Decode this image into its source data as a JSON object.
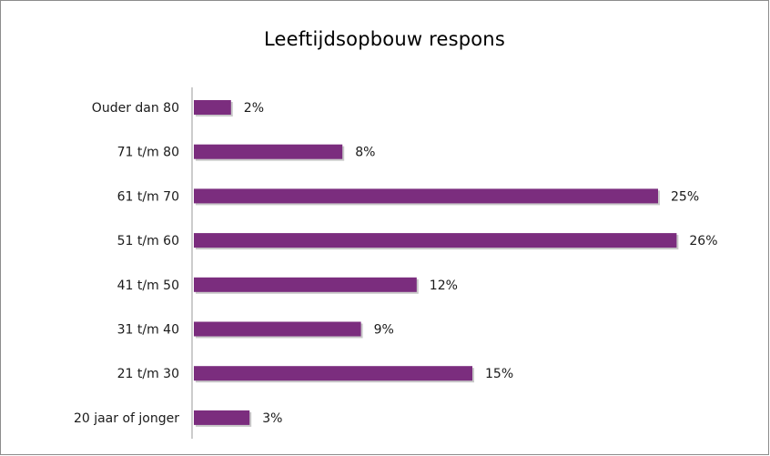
{
  "chart_data": {
    "type": "bar",
    "orientation": "horizontal",
    "title": "Leeftijdsopbouw respons",
    "xlabel": "",
    "ylabel": "",
    "categories": [
      "Ouder dan 80",
      "71 t/m 80",
      "61 t/m 70",
      "51 t/m 60",
      "41 t/m 50 ",
      "31 t/m 40",
      "21 t/m 30",
      "20 jaar of jonger"
    ],
    "values": [
      2,
      8,
      25,
      26,
      12,
      9,
      15,
      3
    ],
    "value_labels": [
      "2%",
      "8%",
      "25%",
      "26%",
      "12%",
      "9%",
      "15%",
      "3%"
    ],
    "unit": "%",
    "xlim": [
      0,
      26
    ],
    "grid": false,
    "legend": "none",
    "bar_color": "#7b2d7e",
    "shadow_color": "#c9c9c9"
  }
}
